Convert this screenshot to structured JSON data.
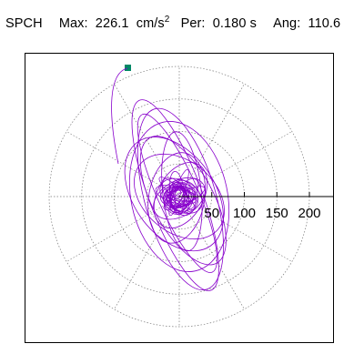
{
  "header": {
    "station": "SPCH",
    "max_label": "Max:",
    "max_value": "226.1",
    "max_unit": "cm/s",
    "max_unit_exp": "2",
    "per_label": "Per:",
    "per_value": "0.180 s",
    "ang_label": "Ang:",
    "ang_value": "110.6"
  },
  "chart_data": {
    "type": "polar-orbit",
    "title": "",
    "rings": [
      50,
      100,
      150,
      200
    ],
    "tick_labels": [
      "50",
      "100",
      "150",
      "200"
    ],
    "r_max": 240,
    "grid": true,
    "orbit_color": "#8800cc",
    "start_marker_color": "#008866",
    "ellipses": [
      {
        "a": 200,
        "b": 52,
        "phi": 110.6,
        "cx": -6,
        "cy": 2
      },
      {
        "a": 185,
        "b": 70,
        "phi": 106,
        "cx": 2,
        "cy": -4
      },
      {
        "a": 170,
        "b": 40,
        "phi": 114,
        "cx": -3,
        "cy": 5
      },
      {
        "a": 150,
        "b": 95,
        "phi": 102,
        "cx": 0,
        "cy": 0
      },
      {
        "a": 140,
        "b": 60,
        "phi": 118,
        "cx": 6,
        "cy": -6
      },
      {
        "a": 125,
        "b": 80,
        "phi": 125,
        "cx": -8,
        "cy": 4
      },
      {
        "a": 118,
        "b": 38,
        "phi": 96,
        "cx": 4,
        "cy": 8
      },
      {
        "a": 100,
        "b": 70,
        "phi": 140,
        "cx": 0,
        "cy": 0
      },
      {
        "a": 90,
        "b": 55,
        "phi": 80,
        "cx": -4,
        "cy": -2
      },
      {
        "a": 70,
        "b": 45,
        "phi": 60,
        "cx": 2,
        "cy": 2
      },
      {
        "a": 55,
        "b": 35,
        "phi": 30,
        "cx": 0,
        "cy": -3
      },
      {
        "a": 45,
        "b": 30,
        "phi": 150,
        "cx": 3,
        "cy": 1
      },
      {
        "a": 35,
        "b": 22,
        "phi": 10,
        "cx": -2,
        "cy": 2
      },
      {
        "a": 28,
        "b": 18,
        "phi": 90,
        "cx": 1,
        "cy": -1
      },
      {
        "a": 22,
        "b": 15,
        "phi": 45,
        "cx": 0,
        "cy": 0
      }
    ],
    "start_point": {
      "r": 226.1,
      "angle_deg": 110.6
    }
  }
}
